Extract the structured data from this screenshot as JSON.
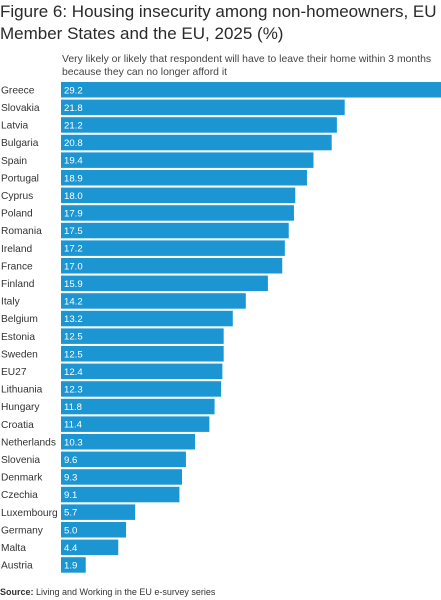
{
  "colors": {
    "bar": "#1b96d3",
    "bar_label": "#ffffff",
    "category_label": "#333333"
  },
  "chart_data": {
    "type": "bar",
    "orientation": "horizontal",
    "title": "Figure 6: Housing insecurity among non-homeowners, EU Member States and the EU, 2025 (%)",
    "subtitle": "Very likely or likely that respondent will have to leave their home within 3 months because they can no longer afford it",
    "xlim": [
      0,
      29.2
    ],
    "grid": false,
    "legend": "none",
    "categories": [
      "Greece",
      "Slovakia",
      "Latvia",
      "Bulgaria",
      "Spain",
      "Portugal",
      "Cyprus",
      "Poland",
      "Romania",
      "Ireland",
      "France",
      "Finland",
      "Italy",
      "Belgium",
      "Estonia",
      "Sweden",
      "EU27",
      "Lithuania",
      "Hungary",
      "Croatia",
      "Netherlands",
      "Slovenia",
      "Denmark",
      "Czechia",
      "Luxembourg",
      "Germany",
      "Malta",
      "Austria"
    ],
    "value_labels": [
      "29.2",
      "21.8",
      "21.2",
      "20.8",
      "19.4",
      "18.9",
      "18.0",
      "17.9",
      "17.5",
      "17.2",
      "17.0",
      "15.9",
      "14.2",
      "13.2",
      "12.5",
      "12.5",
      "12.4",
      "12.3",
      "11.8",
      "11.4",
      "10.3",
      "9.6",
      "9.3",
      "9.1",
      "5.7",
      "5.0",
      "4.4",
      "1.9"
    ],
    "values": [
      29.2,
      21.8,
      21.2,
      20.8,
      19.4,
      18.9,
      18.0,
      17.9,
      17.5,
      17.2,
      17.0,
      15.9,
      14.2,
      13.2,
      12.5,
      12.5,
      12.4,
      12.3,
      11.8,
      11.4,
      10.3,
      9.6,
      9.3,
      9.1,
      5.7,
      5.0,
      4.4,
      1.9
    ]
  },
  "source": {
    "label": "Source:",
    "text": " Living and Working in the EU e-survey series"
  }
}
